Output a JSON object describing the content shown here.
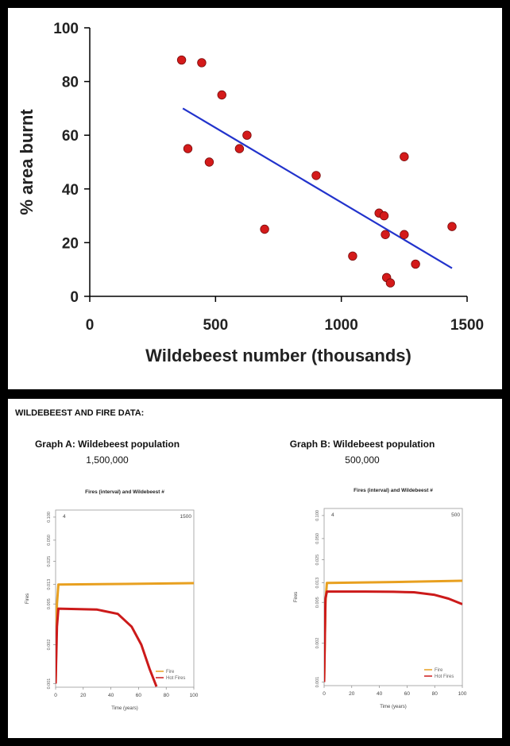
{
  "chart_data": [
    {
      "type": "scatter",
      "title": "",
      "xlabel": "Wildebeest number (thousands)",
      "ylabel": "% area burnt",
      "xlim": [
        0,
        1500
      ],
      "ylim": [
        0,
        100
      ],
      "x_ticks": [
        "0",
        "500",
        "1000",
        "1500"
      ],
      "y_ticks": [
        "0",
        "20",
        "40",
        "60",
        "80",
        "100"
      ],
      "points": [
        {
          "x": 365,
          "y": 88
        },
        {
          "x": 445,
          "y": 87
        },
        {
          "x": 390,
          "y": 55
        },
        {
          "x": 475,
          "y": 50
        },
        {
          "x": 525,
          "y": 75
        },
        {
          "x": 595,
          "y": 55
        },
        {
          "x": 625,
          "y": 60
        },
        {
          "x": 695,
          "y": 25
        },
        {
          "x": 900,
          "y": 45
        },
        {
          "x": 1045,
          "y": 15
        },
        {
          "x": 1150,
          "y": 31
        },
        {
          "x": 1170,
          "y": 30
        },
        {
          "x": 1175,
          "y": 23
        },
        {
          "x": 1180,
          "y": 7
        },
        {
          "x": 1195,
          "y": 5
        },
        {
          "x": 1250,
          "y": 52
        },
        {
          "x": 1250,
          "y": 23
        },
        {
          "x": 1295,
          "y": 12
        },
        {
          "x": 1440,
          "y": 26
        }
      ],
      "trendline": {
        "x": [
          370,
          1440
        ],
        "y": [
          70,
          10.5
        ]
      },
      "point_color": "#d41a1a",
      "line_color": "#2233cc",
      "grid": false
    },
    {
      "type": "line",
      "title": "Fires (interval) and Wildebeest #",
      "xlabel": "Time (years)",
      "ylabel": "Fires",
      "xlim": [
        0,
        100
      ],
      "x_ticks": [
        "0",
        "20",
        "40",
        "60",
        "80",
        "100"
      ],
      "y_ticks": [
        "0.001",
        "0.002",
        "0.005",
        "0.013",
        "0.025",
        "0.050",
        "0.100"
      ],
      "corner_left": "4",
      "corner_right": "1500",
      "series": [
        {
          "name": "Fire",
          "color": "#e8a020",
          "x": [
            0,
            1,
            2,
            3,
            50,
            100
          ],
          "y": [
            0.001,
            0.005,
            0.013,
            0.013,
            0.0132,
            0.0135
          ]
        },
        {
          "name": "Hot Fires",
          "color": "#cc1a1a",
          "x": [
            0,
            1,
            2,
            30,
            45,
            55,
            62,
            68,
            73
          ],
          "y": [
            0.001,
            0.003,
            0.0045,
            0.0044,
            0.004,
            0.003,
            0.002,
            0.0013,
            0.00095
          ]
        }
      ],
      "legend_position": "bottom-right"
    },
    {
      "type": "line",
      "title": "Fires (interval) and Wildebeest #",
      "xlabel": "Time (years)",
      "ylabel": "Fires",
      "xlim": [
        0,
        100
      ],
      "x_ticks": [
        "0",
        "20",
        "40",
        "60",
        "80",
        "100"
      ],
      "y_ticks": [
        "0.001",
        "0.002",
        "0.005",
        "0.013",
        "0.025",
        "0.050",
        "0.100"
      ],
      "corner_left": "4",
      "corner_right": "500",
      "series": [
        {
          "name": "Fire",
          "color": "#e8a020",
          "x": [
            0,
            1,
            2,
            3,
            50,
            100
          ],
          "y": [
            0.001,
            0.005,
            0.013,
            0.013,
            0.0133,
            0.0138
          ]
        },
        {
          "name": "Hot Fires",
          "color": "#cc1a1a",
          "x": [
            0,
            1,
            2,
            30,
            50,
            65,
            80,
            90,
            100
          ],
          "y": [
            0.001,
            0.006,
            0.0085,
            0.0085,
            0.0084,
            0.0082,
            0.0072,
            0.006,
            0.0048
          ]
        }
      ],
      "legend_position": "bottom-right"
    }
  ],
  "section": {
    "heading": "WILDEBEEST AND FIRE DATA:",
    "graph_a_title": "Graph A: Wildebeest population",
    "graph_a_value": "1,500,000",
    "graph_b_title": "Graph B: Wildebeest population",
    "graph_b_value": "500,000"
  }
}
